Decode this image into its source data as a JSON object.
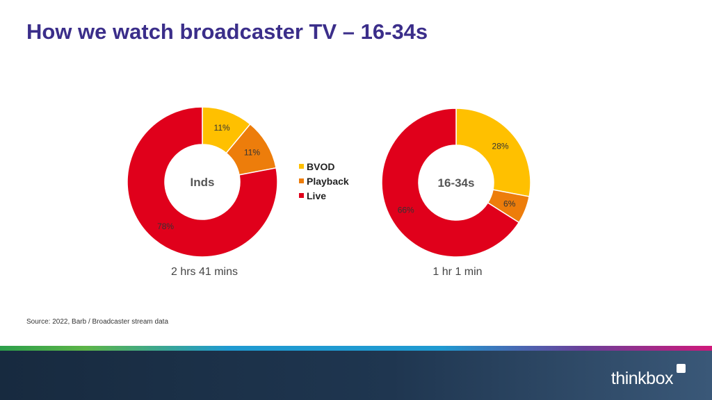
{
  "title": "How we watch broadcaster TV – 16-34s",
  "source": "Source: 2022, Barb / Broadcaster stream data",
  "brand": "thinkbox",
  "legend": [
    {
      "name": "BVOD",
      "color": "#ffc000"
    },
    {
      "name": "Playback",
      "color": "#ed7d0b"
    },
    {
      "name": "Live",
      "color": "#e0001b"
    }
  ],
  "chart_data": [
    {
      "type": "pie",
      "center_label": "Inds",
      "total_label": "2 hrs 41 mins",
      "categories": [
        "BVOD",
        "Playback",
        "Live"
      ],
      "values": [
        11,
        11,
        78
      ],
      "value_labels": [
        "11%",
        "11%",
        "78%"
      ],
      "colors": [
        "#ffc000",
        "#ed7d0b",
        "#e0001b"
      ]
    },
    {
      "type": "pie",
      "center_label": "16-34s",
      "total_label": "1 hr 1 min",
      "categories": [
        "BVOD",
        "Playback",
        "Live"
      ],
      "values": [
        28,
        6,
        66
      ],
      "value_labels": [
        "28%",
        "6%",
        "66%"
      ],
      "colors": [
        "#ffc000",
        "#ed7d0b",
        "#e0001b"
      ]
    }
  ]
}
